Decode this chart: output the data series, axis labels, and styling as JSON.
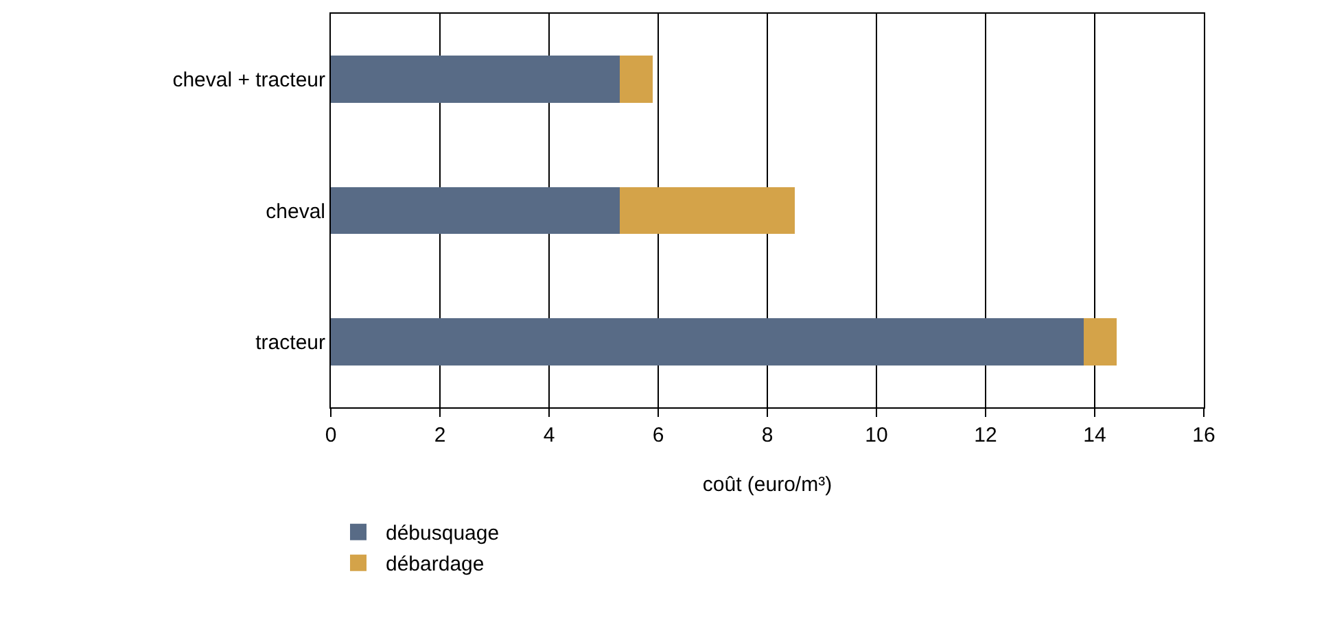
{
  "chart_data": {
    "type": "bar",
    "orientation": "horizontal",
    "stacked": true,
    "categories": [
      "cheval + tracteur",
      "cheval",
      "tracteur"
    ],
    "series": [
      {
        "name": "débusquage",
        "color": "#586b86",
        "values": [
          5.3,
          5.3,
          13.8
        ]
      },
      {
        "name": "débardage",
        "color": "#d4a349",
        "values": [
          0.6,
          3.2,
          0.6
        ]
      }
    ],
    "xlabel": "coût (euro/m³)",
    "xlim": [
      0,
      16
    ],
    "xticks": [
      0,
      2,
      4,
      6,
      8,
      10,
      12,
      14,
      16
    ],
    "grid": "x",
    "legend": "bottom left"
  }
}
